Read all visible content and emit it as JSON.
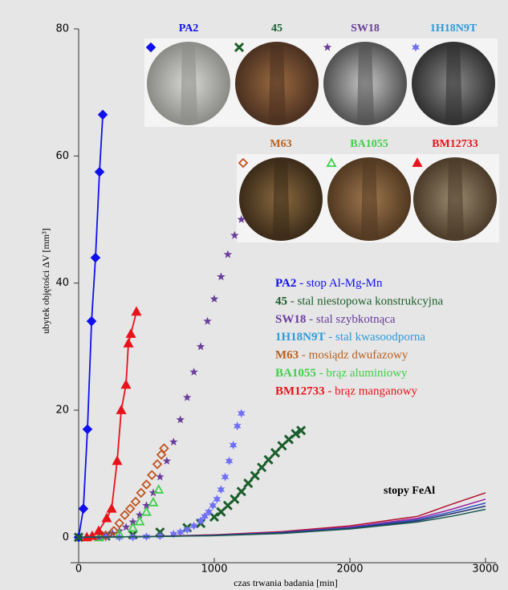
{
  "chart_data": {
    "type": "scatter",
    "xlabel": "czas trwania badania [min]",
    "ylabel": "ubytek objętości ΔV [mm³]",
    "annotation": "stopy FeAl",
    "xlim": [
      0,
      3080
    ],
    "ylim": [
      -4,
      80
    ],
    "xticks": [
      0,
      1000,
      2000,
      3000
    ],
    "yticks": [
      0,
      20,
      40,
      60,
      80
    ],
    "series": [
      {
        "name": "PA2",
        "description": "- stop Al-Mg-Mn",
        "color": "#1010ee",
        "text_color": "#1010ee",
        "marker": "diamond",
        "line": true,
        "x": [
          0,
          35,
          65,
          95,
          124,
          154,
          178
        ],
        "values": [
          0,
          4.5,
          17,
          34,
          44,
          57.5,
          66.5
        ]
      },
      {
        "name": "45",
        "description": "- stal niestopowa konstrukcyjna",
        "color": "#1b5e2b",
        "text_color": "#1b5e2b",
        "marker": "x",
        "line": false,
        "x": [
          0,
          200,
          400,
          600,
          800,
          900,
          1000,
          1050,
          1100,
          1150,
          1200,
          1250,
          1300,
          1350,
          1400,
          1450,
          1500,
          1550,
          1600,
          1640
        ],
        "values": [
          0,
          0.2,
          0.4,
          0.8,
          1.5,
          2.2,
          3.2,
          4,
          5,
          6,
          7.2,
          8.5,
          9.7,
          11,
          12.2,
          13.3,
          14.4,
          15.4,
          16.3,
          16.8
        ]
      },
      {
        "name": "SW18",
        "description": "- stal szybkotnąca",
        "color": "#6a3d9a",
        "text_color": "#6a3d9a",
        "marker": "star",
        "line": false,
        "x": [
          150,
          200,
          250,
          300,
          350,
          400,
          450,
          500,
          550,
          600,
          650,
          700,
          750,
          800,
          850,
          900,
          950,
          1000,
          1050,
          1100,
          1150,
          1200
        ],
        "values": [
          0,
          0.3,
          0.6,
          1,
          1.6,
          2.4,
          3.5,
          5,
          7,
          9.5,
          12,
          15,
          18.5,
          22,
          26,
          30,
          34,
          37.5,
          41,
          44.5,
          47.5,
          50
        ]
      },
      {
        "name": "1H18N9T",
        "description": "- stal kwasoodporna",
        "color": "#6f6ff5",
        "text_color": "#2f9ad8",
        "marker": "star6",
        "line": false,
        "x": [
          200,
          300,
          400,
          500,
          600,
          700,
          750,
          800,
          850,
          900,
          930,
          960,
          990,
          1020,
          1050,
          1080,
          1110,
          1140,
          1170,
          1200
        ],
        "values": [
          0,
          0,
          0,
          0.1,
          0.2,
          0.5,
          0.8,
          1.2,
          1.8,
          2.6,
          3.3,
          4,
          5,
          6,
          7.5,
          9.5,
          12,
          14.5,
          17.5,
          19.5
        ]
      },
      {
        "name": "M63",
        "description": "- mosiądz dwufazowy",
        "color": "#c0531f",
        "text_color": "#b8601e",
        "marker": "diamond-open",
        "line": false,
        "x": [
          200,
          260,
          300,
          340,
          380,
          420,
          460,
          500,
          540,
          580,
          610,
          630
        ],
        "values": [
          0.3,
          1,
          2.2,
          3.5,
          4.5,
          5.6,
          7,
          8.3,
          9.8,
          11.5,
          13,
          14
        ]
      },
      {
        "name": "BA1055",
        "description": "- brąz aluminiowy",
        "color": "#3fcf4a",
        "text_color": "#3fcf4a",
        "marker": "triangle-open",
        "line": false,
        "x": [
          150,
          300,
          400,
          450,
          500,
          550,
          590
        ],
        "values": [
          0,
          0.5,
          1.5,
          2.5,
          4,
          5.5,
          7.5
        ]
      },
      {
        "name": "BM12733",
        "description": "- brąz manganowy",
        "color": "#e8121a",
        "text_color": "#e8121a",
        "marker": "triangle",
        "line": true,
        "x": [
          60,
          100,
          148,
          207,
          243,
          284,
          314,
          349,
          367,
          385,
          426
        ],
        "values": [
          0,
          0.2,
          1,
          3,
          4.5,
          12,
          20,
          24,
          30.5,
          32,
          35.5
        ]
      },
      {
        "color": "#b01030",
        "marker": "none",
        "line": true,
        "x": [
          0,
          500,
          1000,
          1500,
          2000,
          2500,
          2750,
          3000
        ],
        "values": [
          0,
          0.1,
          0.4,
          0.9,
          1.8,
          3.3,
          5.2,
          7
        ]
      },
      {
        "color": "#a020a0",
        "marker": "none",
        "line": true,
        "x": [
          0,
          500,
          1000,
          1500,
          2000,
          2500,
          2750,
          3000
        ],
        "values": [
          0,
          0.1,
          0.35,
          0.8,
          1.6,
          3,
          4.4,
          6
        ]
      },
      {
        "color": "#3050c0",
        "marker": "none",
        "line": true,
        "x": [
          0,
          500,
          1000,
          1500,
          2000,
          2500,
          2750,
          3000
        ],
        "values": [
          0,
          0.1,
          0.3,
          0.75,
          1.5,
          2.8,
          4,
          5.4
        ]
      },
      {
        "color": "#203070",
        "marker": "none",
        "line": true,
        "x": [
          0,
          500,
          1000,
          1500,
          2000,
          2500,
          2750,
          3000
        ],
        "values": [
          0,
          0.1,
          0.3,
          0.7,
          1.4,
          2.6,
          3.7,
          4.9
        ]
      },
      {
        "color": "#1a5a50",
        "marker": "none",
        "line": true,
        "x": [
          0,
          500,
          1000,
          1500,
          2000,
          2500,
          2750,
          3000
        ],
        "values": [
          0,
          0.1,
          0.25,
          0.6,
          1.3,
          2.4,
          3.3,
          4.4
        ]
      }
    ]
  }
}
